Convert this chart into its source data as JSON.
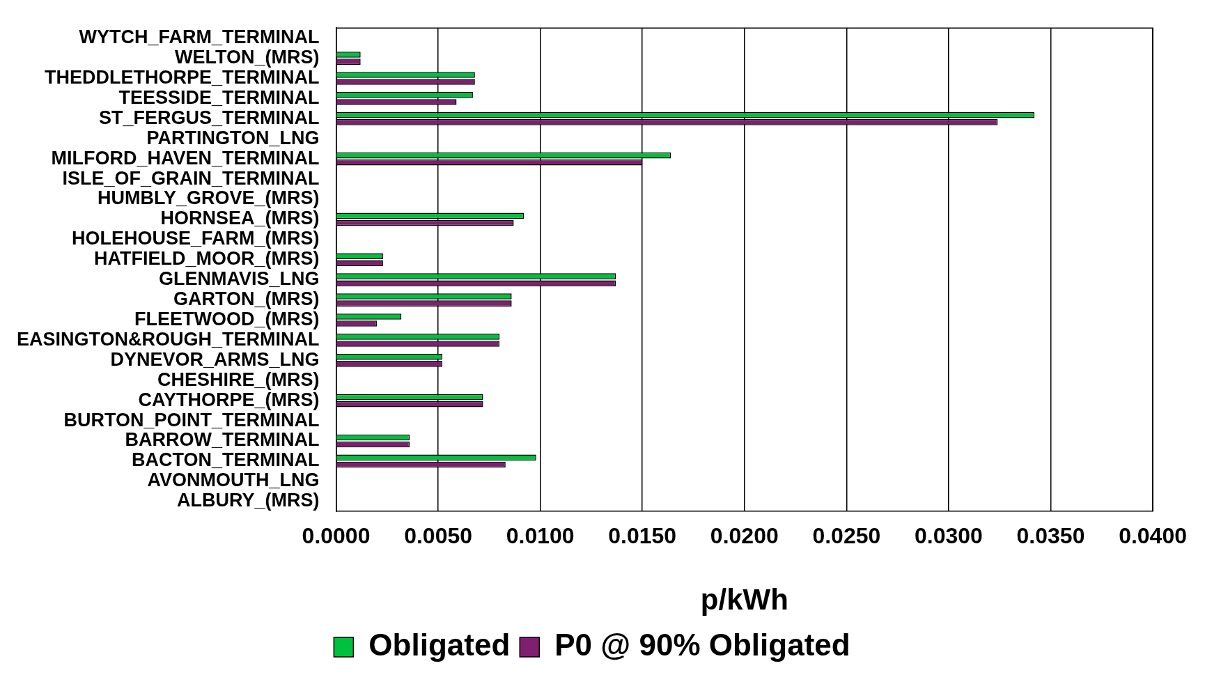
{
  "chart_data": {
    "type": "bar",
    "orientation": "horizontal",
    "xlabel": "p/kWh",
    "categories": [
      "WYTCH_FARM_TERMINAL",
      "WELTON_(MRS)",
      "THEDDLETHORPE_TERMINAL",
      "TEESSIDE_TERMINAL",
      "ST_FERGUS_TERMINAL",
      "PARTINGTON_LNG",
      "MILFORD_HAVEN_TERMINAL",
      "ISLE_OF_GRAIN_TERMINAL",
      "HUMBLY_GROVE_(MRS)",
      "HORNSEA_(MRS)",
      "HOLEHOUSE_FARM_(MRS)",
      "HATFIELD_MOOR_(MRS)",
      "GLENMAVIS_LNG",
      "GARTON_(MRS)",
      "FLEETWOOD_(MRS)",
      "EASINGTON&ROUGH_TERMINAL",
      "DYNEVOR_ARMS_LNG",
      "CHESHIRE_(MRS)",
      "CAYTHORPE_(MRS)",
      "BURTON_POINT_TERMINAL",
      "BARROW_TERMINAL",
      "BACTON_TERMINAL",
      "AVONMOUTH_LNG",
      "ALBURY_(MRS)"
    ],
    "series": [
      {
        "name": "Obligated",
        "color": "#00c040",
        "values": [
          0,
          0.0012,
          0.0068,
          0.0067,
          0.0342,
          0,
          0.0164,
          0,
          0,
          0.0092,
          0,
          0.0023,
          0.0137,
          0.0086,
          0.0032,
          0.008,
          0.0052,
          0,
          0.0072,
          0,
          0.0036,
          0.0098,
          0,
          0
        ]
      },
      {
        "name": "P0 @ 90% Obligated",
        "color": "#7f1f6f",
        "values": [
          0,
          0.0012,
          0.0068,
          0.0059,
          0.0324,
          0,
          0.015,
          0,
          0,
          0.0087,
          0,
          0.0023,
          0.0137,
          0.0086,
          0.002,
          0.008,
          0.0052,
          0,
          0.0072,
          0,
          0.0036,
          0.0083,
          0,
          0
        ]
      }
    ],
    "xlim": [
      0,
      0.04
    ],
    "xticks": [
      {
        "value": 0,
        "label": "0.0000"
      },
      {
        "value": 0.005,
        "label": "0.0050"
      },
      {
        "value": 0.01,
        "label": "0.0100"
      },
      {
        "value": 0.015,
        "label": "0.0150"
      },
      {
        "value": 0.02,
        "label": "0.0200"
      },
      {
        "value": 0.025,
        "label": "0.0250"
      },
      {
        "value": 0.03,
        "label": "0.0300"
      },
      {
        "value": 0.035,
        "label": "0.0350"
      },
      {
        "value": 0.04,
        "label": "0.0400"
      }
    ],
    "grid": "x",
    "legend": "bottom"
  }
}
